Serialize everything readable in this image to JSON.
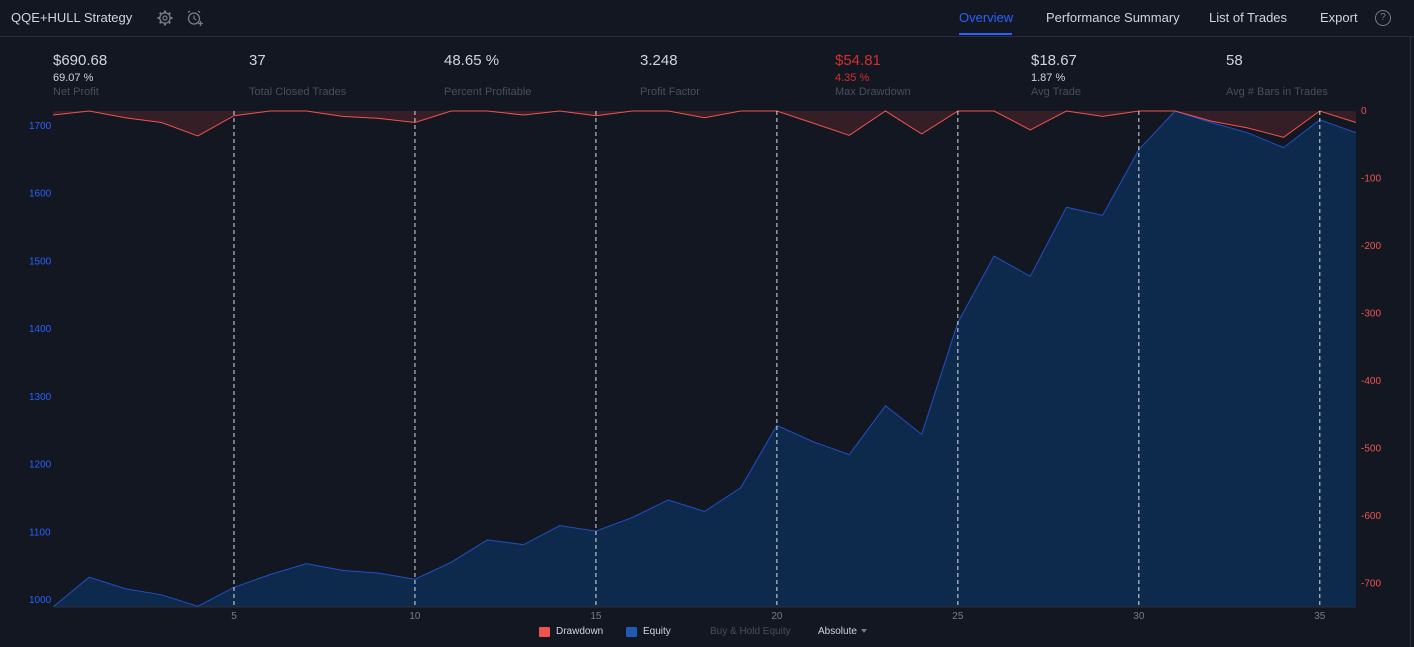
{
  "header": {
    "title": "QQE+HULL Strategy",
    "tabs": [
      {
        "label": "Overview",
        "active": true
      },
      {
        "label": "Performance Summary",
        "active": false
      },
      {
        "label": "List of Trades",
        "active": false
      },
      {
        "label": "Export",
        "active": false
      }
    ],
    "help_glyph": "?"
  },
  "stats": [
    {
      "value": "$690.68",
      "sub": "69.07 %",
      "label": "Net Profit"
    },
    {
      "value": "37",
      "sub": "",
      "label": "Total Closed Trades"
    },
    {
      "value": "48.65 %",
      "sub": "",
      "label": "Percent Profitable"
    },
    {
      "value": "3.248",
      "sub": "",
      "label": "Profit Factor"
    },
    {
      "value": "$54.81",
      "sub": "4.35 %",
      "label": "Max Drawdown"
    },
    {
      "value": "$18.67",
      "sub": "1.87 %",
      "label": "Avg Trade"
    },
    {
      "value": "58",
      "sub": "",
      "label": "Avg # Bars in Trades"
    }
  ],
  "legend": {
    "drawdown": "Drawdown",
    "equity": "Equity",
    "buy_hold": "Buy & Hold Equity",
    "mode": "Absolute"
  },
  "colors": {
    "equity_line": "#2962ff",
    "equity_fill": "#0d2a4d",
    "drawdown_line": "#ef5350",
    "drawdown_fill": "#3a1f26",
    "left_axis": "#2962ff",
    "right_axis": "#ef5350"
  },
  "chart_data": {
    "type": "area",
    "x": [
      0,
      1,
      2,
      3,
      4,
      5,
      6,
      7,
      8,
      9,
      10,
      11,
      12,
      13,
      14,
      15,
      16,
      17,
      18,
      19,
      20,
      21,
      22,
      23,
      24,
      25,
      26,
      27,
      28,
      29,
      30,
      31,
      32,
      33,
      34,
      35,
      36
    ],
    "x_ticks": [
      5,
      10,
      15,
      20,
      25,
      30,
      35
    ],
    "series": [
      {
        "name": "Equity",
        "axis": "left",
        "values": [
          990,
          1034,
          1017,
          1008,
          991,
          1019,
          1038,
          1054,
          1044,
          1040,
          1031,
          1056,
          1089,
          1082,
          1110,
          1102,
          1122,
          1148,
          1131,
          1166,
          1258,
          1234,
          1215,
          1287,
          1245,
          1410,
          1508,
          1478,
          1580,
          1568,
          1665,
          1722,
          1705,
          1690,
          1668,
          1709,
          1690
        ]
      },
      {
        "name": "Drawdown",
        "axis": "right",
        "values": [
          -6,
          0,
          -10,
          -17,
          -37,
          -7,
          0,
          0,
          -8,
          -11,
          -17,
          0,
          0,
          -6,
          0,
          -7,
          0,
          0,
          -10,
          0,
          0,
          -18,
          -36,
          0,
          -34,
          0,
          0,
          -28,
          0,
          -8,
          0,
          0,
          -15,
          -25,
          -39,
          0,
          -17
        ]
      }
    ],
    "left_ylim": [
      990,
      1722
    ],
    "left_ticks": [
      1000,
      1100,
      1200,
      1300,
      1400,
      1500,
      1600,
      1700
    ],
    "right_ylim": [
      -735,
      0
    ],
    "right_ticks": [
      0,
      -100,
      -200,
      -300,
      -400,
      -500,
      -600,
      -700
    ],
    "grid": "vertical dashed at x ticks"
  }
}
